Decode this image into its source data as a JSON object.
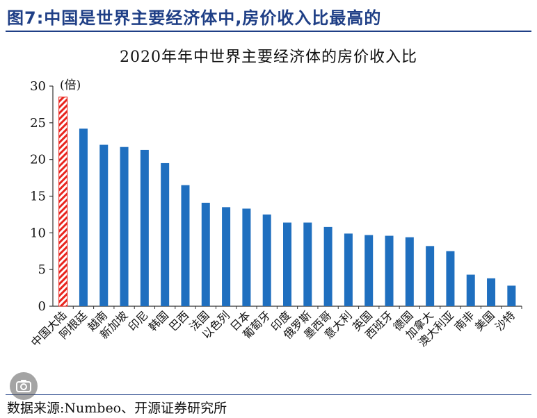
{
  "figure": {
    "label": "图7:中国是世界主要经济体中,房价收入比最高的",
    "accent_color": "#1f3f86"
  },
  "chart_data": {
    "type": "bar",
    "title": "2020年年中世界主要经济体的房价收入比",
    "unit_label": "(倍)",
    "xlabel": "",
    "ylabel": "",
    "ylim": [
      0,
      30
    ],
    "yticks": [
      0,
      5,
      10,
      15,
      20,
      25,
      30
    ],
    "grid": false,
    "legend": "none",
    "categories": [
      "中国大陆",
      "阿根廷",
      "越南",
      "新加坡",
      "印尼",
      "韩国",
      "巴西",
      "法国",
      "以色列",
      "日本",
      "葡萄牙",
      "印度",
      "俄罗斯",
      "墨西哥",
      "意大利",
      "英国",
      "西班牙",
      "德国",
      "加拿大",
      "澳大利亚",
      "南非",
      "美国",
      "沙特"
    ],
    "values": [
      28.5,
      24.2,
      22.0,
      21.7,
      21.3,
      19.5,
      16.5,
      14.1,
      13.5,
      13.3,
      12.5,
      11.4,
      11.4,
      10.8,
      9.9,
      9.7,
      9.6,
      9.4,
      8.2,
      7.5,
      4.3,
      3.8,
      2.8
    ],
    "bar_color": "#1f6fbf",
    "highlight_category": "中国大陆",
    "highlight_color": "#e8251e"
  },
  "source": "数据来源:Numbeo、开源证券研究所",
  "overlay": {
    "icon": "camera-search-icon"
  }
}
